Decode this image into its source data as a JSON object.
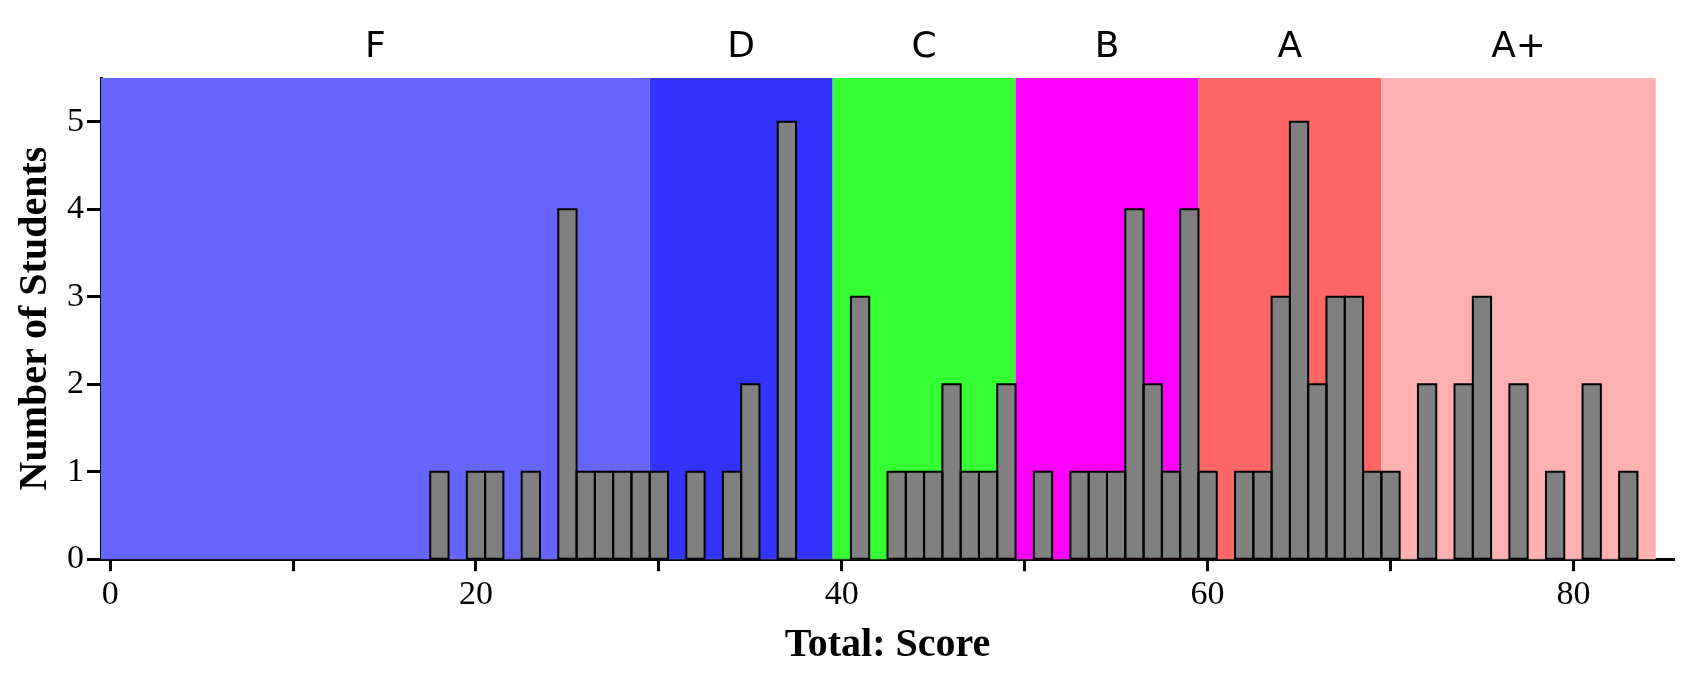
{
  "chart_data": {
    "type": "histogram",
    "xlabel": "Total: Score",
    "ylabel": "Number of Students",
    "bins": [
      17.5,
      18.5,
      19.5,
      20.5,
      21.5,
      22.5,
      23.5,
      24.5,
      25.5,
      26.5,
      27.5,
      28.5,
      29.5,
      30.5,
      31.5,
      32.5,
      33.5,
      34.5,
      35.5,
      36.5,
      37.5,
      38.5,
      39.5,
      40.5,
      41.5,
      42.5,
      43.5,
      44.5,
      45.5,
      46.5,
      47.5,
      48.5,
      49.5,
      50.5,
      51.5,
      52.5,
      53.5,
      54.5,
      55.5,
      56.5,
      57.5,
      58.5,
      59.5,
      60.5,
      61.5,
      62.5,
      63.5,
      64.5,
      65.5,
      66.5,
      67.5,
      68.5,
      69.5,
      70.5,
      71.5,
      72.5,
      73.5,
      74.5,
      75.5,
      76.5,
      77.5,
      78.5,
      79.5,
      80.5,
      81.5,
      82.5,
      83.5
    ],
    "values": [
      1,
      0,
      1,
      1,
      0,
      1,
      0,
      4,
      1,
      1,
      1,
      1,
      1,
      0,
      1,
      0,
      1,
      2,
      0,
      5,
      0,
      0,
      0,
      3,
      0,
      1,
      1,
      1,
      2,
      1,
      1,
      2,
      0,
      1,
      0,
      1,
      1,
      1,
      4,
      2,
      1,
      4,
      1,
      0,
      1,
      1,
      3,
      5,
      2,
      3,
      3,
      1,
      1,
      0,
      2,
      0,
      2,
      3,
      0,
      2,
      0,
      1,
      0,
      2,
      0,
      1
    ],
    "color": "#808080",
    "xlim": [
      -0.5,
      85.5
    ],
    "xticks": [
      0,
      {
        "value": 10,
        "label": null
      },
      20,
      {
        "value": 30,
        "label": null
      },
      40,
      {
        "value": 50,
        "label": null
      },
      60,
      {
        "value": 70,
        "label": null
      },
      80
    ],
    "ylim": [
      0,
      5.5
    ],
    "yticks": [
      0,
      1,
      2,
      3,
      4,
      5
    ],
    "bands": [
      {
        "axis": "x",
        "from": -0.5,
        "to": 29.5,
        "label": "F",
        "color": "#6666ff"
      },
      {
        "axis": "x",
        "from": 29.5,
        "to": 39.5,
        "label": "D",
        "color": "#3333ff"
      },
      {
        "axis": "x",
        "from": 39.5,
        "to": 49.5,
        "label": "C",
        "color": "#33ff33"
      },
      {
        "axis": "x",
        "from": 49.5,
        "to": 59.5,
        "label": "B",
        "color": "#ff00ff"
      },
      {
        "axis": "x",
        "from": 59.5,
        "to": 69.5,
        "label": "A",
        "color": "#ff6666"
      },
      {
        "axis": "x",
        "from": 69.5,
        "to": 84.5,
        "label": "A+",
        "color": "#ffb0b0"
      }
    ],
    "grid": false,
    "legend": false
  }
}
